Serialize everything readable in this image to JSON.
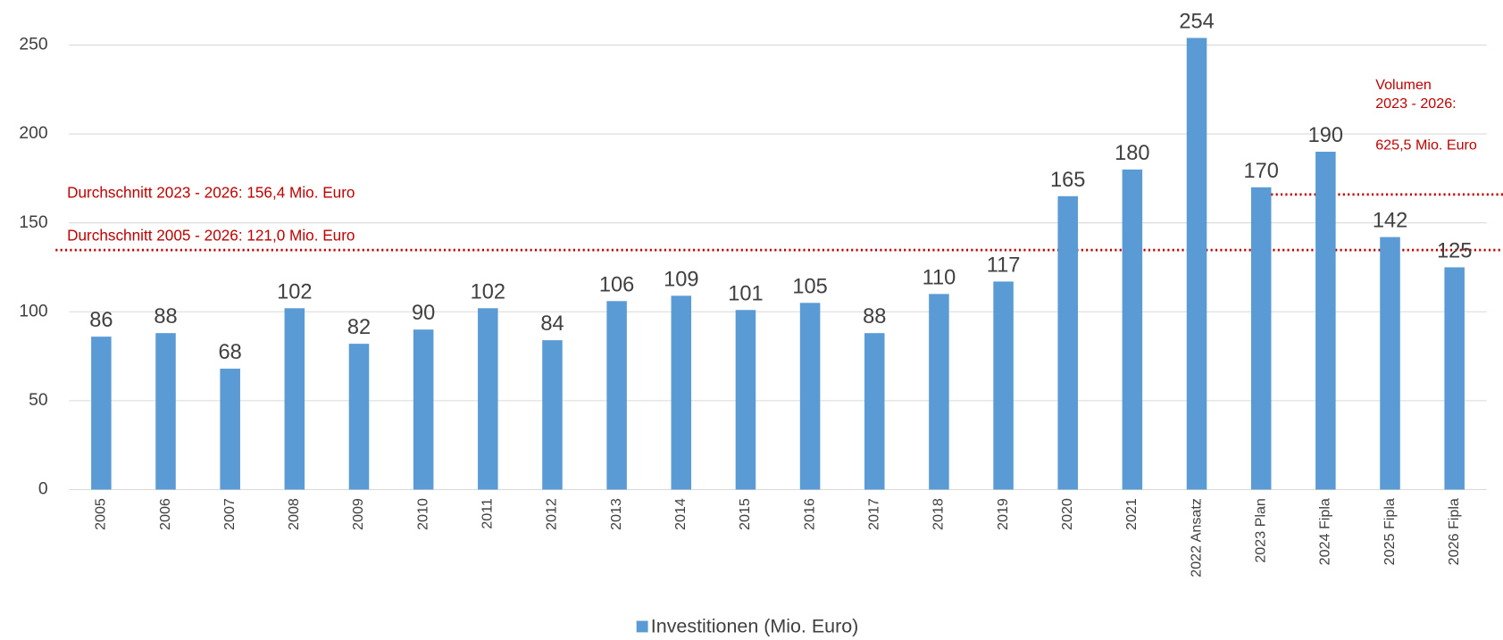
{
  "chart_data": {
    "type": "bar",
    "categories": [
      "2005",
      "2006",
      "2007",
      "2008",
      "2009",
      "2010",
      "2011",
      "2012",
      "2013",
      "2014",
      "2015",
      "2016",
      "2017",
      "2018",
      "2019",
      "2020",
      "2021",
      "2022 Ansatz",
      "2023 Plan",
      "2024 Fipla",
      "2025 Fipla",
      "2026 Fipla"
    ],
    "series": [
      {
        "name": "Investitionen (Mio. Euro)",
        "color": "#5b9bd5",
        "values": [
          86,
          88,
          68,
          102,
          82,
          90,
          102,
          84,
          106,
          109,
          101,
          105,
          88,
          110,
          117,
          165,
          180,
          254,
          170,
          190,
          142,
          125
        ]
      }
    ],
    "ylim": [
      0,
      250
    ],
    "yticks": [
      0,
      50,
      100,
      150,
      200,
      250
    ],
    "grid": true,
    "legend": "bottom",
    "annotations": [
      "Durchschnitt 2023 - 2026: 156,4 Mio. Euro",
      "Durchschnitt 2005 - 2026: 121,0 Mio. Euro",
      "Volumen",
      "2023 - 2026:",
      "625,5 Mio. Euro"
    ]
  }
}
